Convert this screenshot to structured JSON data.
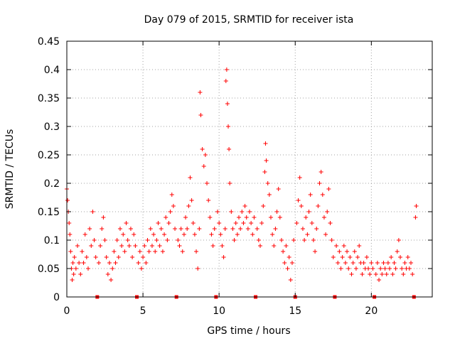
{
  "chart_data": {
    "type": "scatter",
    "title": "Day 079 of 2015, SRMTID for receiver ista",
    "xlabel": "GPS time / hours",
    "ylabel": "SRMTID / TECUs",
    "xlim": [
      0,
      24
    ],
    "ylim": [
      0,
      0.45
    ],
    "xticks": [
      0,
      5,
      10,
      15,
      20
    ],
    "yticks": [
      0,
      0.05,
      0.1,
      0.15,
      0.2,
      0.25,
      0.3,
      0.35,
      0.4,
      0.45
    ],
    "ytick_labels": [
      "0",
      "0.05",
      "0.1",
      "0.15",
      "0.2",
      "0.25",
      "0.3",
      "0.35",
      "0.4",
      "0.45"
    ],
    "grid": true,
    "marker": "+",
    "color": "#ff0000",
    "gap_markers_x": [
      2.0,
      4.6,
      7.2,
      9.8,
      12.4,
      15.0,
      17.6,
      20.2,
      22.8
    ],
    "series": [
      {
        "name": "SRMTID",
        "points": [
          [
            0.0,
            0.19
          ],
          [
            0.05,
            0.17
          ],
          [
            0.1,
            0.15
          ],
          [
            0.15,
            0.13
          ],
          [
            0.2,
            0.11
          ],
          [
            0.25,
            0.08
          ],
          [
            0.3,
            0.05
          ],
          [
            0.35,
            0.03
          ],
          [
            0.4,
            0.06
          ],
          [
            0.45,
            0.04
          ],
          [
            0.5,
            0.07
          ],
          [
            0.6,
            0.05
          ],
          [
            0.7,
            0.09
          ],
          [
            0.8,
            0.06
          ],
          [
            0.9,
            0.04
          ],
          [
            1.0,
            0.08
          ],
          [
            1.1,
            0.06
          ],
          [
            1.2,
            0.11
          ],
          [
            1.3,
            0.07
          ],
          [
            1.4,
            0.05
          ],
          [
            1.5,
            0.12
          ],
          [
            1.6,
            0.09
          ],
          [
            1.7,
            0.15
          ],
          [
            1.8,
            0.1
          ],
          [
            1.9,
            0.07
          ],
          [
            2.1,
            0.06
          ],
          [
            2.2,
            0.09
          ],
          [
            2.3,
            0.12
          ],
          [
            2.4,
            0.14
          ],
          [
            2.5,
            0.1
          ],
          [
            2.6,
            0.07
          ],
          [
            2.7,
            0.04
          ],
          [
            2.8,
            0.06
          ],
          [
            2.9,
            0.03
          ],
          [
            3.0,
            0.05
          ],
          [
            3.1,
            0.08
          ],
          [
            3.2,
            0.06
          ],
          [
            3.3,
            0.1
          ],
          [
            3.4,
            0.07
          ],
          [
            3.5,
            0.12
          ],
          [
            3.6,
            0.09
          ],
          [
            3.7,
            0.11
          ],
          [
            3.8,
            0.08
          ],
          [
            3.9,
            0.13
          ],
          [
            4.0,
            0.1
          ],
          [
            4.1,
            0.09
          ],
          [
            4.2,
            0.12
          ],
          [
            4.3,
            0.07
          ],
          [
            4.4,
            0.11
          ],
          [
            4.5,
            0.09
          ],
          [
            4.7,
            0.06
          ],
          [
            4.8,
            0.08
          ],
          [
            4.9,
            0.05
          ],
          [
            5.0,
            0.07
          ],
          [
            5.1,
            0.09
          ],
          [
            5.2,
            0.06
          ],
          [
            5.3,
            0.1
          ],
          [
            5.4,
            0.08
          ],
          [
            5.5,
            0.12
          ],
          [
            5.6,
            0.09
          ],
          [
            5.7,
            0.11
          ],
          [
            5.8,
            0.08
          ],
          [
            5.9,
            0.1
          ],
          [
            6.0,
            0.13
          ],
          [
            6.1,
            0.09
          ],
          [
            6.2,
            0.12
          ],
          [
            6.3,
            0.08
          ],
          [
            6.4,
            0.11
          ],
          [
            6.5,
            0.14
          ],
          [
            6.6,
            0.1
          ],
          [
            6.7,
            0.13
          ],
          [
            6.8,
            0.15
          ],
          [
            6.9,
            0.18
          ],
          [
            7.0,
            0.16
          ],
          [
            7.1,
            0.12
          ],
          [
            7.3,
            0.1
          ],
          [
            7.4,
            0.09
          ],
          [
            7.5,
            0.12
          ],
          [
            7.6,
            0.08
          ],
          [
            7.7,
            0.11
          ],
          [
            7.8,
            0.14
          ],
          [
            7.9,
            0.12
          ],
          [
            8.0,
            0.16
          ],
          [
            8.1,
            0.21
          ],
          [
            8.2,
            0.17
          ],
          [
            8.3,
            0.13
          ],
          [
            8.4,
            0.11
          ],
          [
            8.5,
            0.08
          ],
          [
            8.6,
            0.05
          ],
          [
            8.7,
            0.12
          ],
          [
            8.75,
            0.36
          ],
          [
            8.8,
            0.32
          ],
          [
            8.9,
            0.26
          ],
          [
            9.0,
            0.23
          ],
          [
            9.1,
            0.25
          ],
          [
            9.2,
            0.2
          ],
          [
            9.3,
            0.17
          ],
          [
            9.4,
            0.14
          ],
          [
            9.5,
            0.11
          ],
          [
            9.6,
            0.09
          ],
          [
            9.7,
            0.12
          ],
          [
            9.9,
            0.15
          ],
          [
            10.0,
            0.13
          ],
          [
            10.1,
            0.11
          ],
          [
            10.2,
            0.09
          ],
          [
            10.3,
            0.07
          ],
          [
            10.4,
            0.12
          ],
          [
            10.45,
            0.38
          ],
          [
            10.5,
            0.4
          ],
          [
            10.55,
            0.34
          ],
          [
            10.6,
            0.3
          ],
          [
            10.65,
            0.26
          ],
          [
            10.7,
            0.2
          ],
          [
            10.8,
            0.15
          ],
          [
            10.9,
            0.12
          ],
          [
            11.0,
            0.1
          ],
          [
            11.1,
            0.13
          ],
          [
            11.2,
            0.11
          ],
          [
            11.3,
            0.14
          ],
          [
            11.4,
            0.12
          ],
          [
            11.5,
            0.15
          ],
          [
            11.6,
            0.13
          ],
          [
            11.7,
            0.16
          ],
          [
            11.8,
            0.14
          ],
          [
            11.9,
            0.12
          ],
          [
            12.0,
            0.15
          ],
          [
            12.1,
            0.13
          ],
          [
            12.2,
            0.11
          ],
          [
            12.3,
            0.14
          ],
          [
            12.5,
            0.12
          ],
          [
            12.6,
            0.1
          ],
          [
            12.7,
            0.09
          ],
          [
            12.8,
            0.13
          ],
          [
            12.9,
            0.16
          ],
          [
            13.0,
            0.22
          ],
          [
            13.05,
            0.27
          ],
          [
            13.1,
            0.24
          ],
          [
            13.2,
            0.2
          ],
          [
            13.3,
            0.18
          ],
          [
            13.4,
            0.14
          ],
          [
            13.5,
            0.11
          ],
          [
            13.6,
            0.09
          ],
          [
            13.7,
            0.12
          ],
          [
            13.8,
            0.15
          ],
          [
            13.9,
            0.19
          ],
          [
            14.0,
            0.14
          ],
          [
            14.1,
            0.1
          ],
          [
            14.2,
            0.08
          ],
          [
            14.3,
            0.06
          ],
          [
            14.4,
            0.09
          ],
          [
            14.5,
            0.05
          ],
          [
            14.6,
            0.07
          ],
          [
            14.7,
            0.03
          ],
          [
            14.8,
            0.06
          ],
          [
            14.9,
            0.1
          ],
          [
            15.1,
            0.13
          ],
          [
            15.2,
            0.17
          ],
          [
            15.3,
            0.21
          ],
          [
            15.4,
            0.16
          ],
          [
            15.5,
            0.12
          ],
          [
            15.6,
            0.1
          ],
          [
            15.7,
            0.14
          ],
          [
            15.8,
            0.11
          ],
          [
            15.9,
            0.15
          ],
          [
            16.0,
            0.18
          ],
          [
            16.1,
            0.13
          ],
          [
            16.2,
            0.1
          ],
          [
            16.3,
            0.08
          ],
          [
            16.4,
            0.12
          ],
          [
            16.5,
            0.16
          ],
          [
            16.6,
            0.2
          ],
          [
            16.7,
            0.22
          ],
          [
            16.8,
            0.18
          ],
          [
            16.9,
            0.14
          ],
          [
            17.0,
            0.11
          ],
          [
            17.1,
            0.15
          ],
          [
            17.2,
            0.19
          ],
          [
            17.3,
            0.13
          ],
          [
            17.4,
            0.1
          ],
          [
            17.5,
            0.07
          ],
          [
            17.7,
            0.09
          ],
          [
            17.8,
            0.06
          ],
          [
            17.9,
            0.08
          ],
          [
            18.0,
            0.05
          ],
          [
            18.1,
            0.07
          ],
          [
            18.2,
            0.09
          ],
          [
            18.3,
            0.06
          ],
          [
            18.4,
            0.08
          ],
          [
            18.5,
            0.05
          ],
          [
            18.6,
            0.07
          ],
          [
            18.7,
            0.04
          ],
          [
            18.8,
            0.06
          ],
          [
            18.9,
            0.08
          ],
          [
            19.0,
            0.05
          ],
          [
            19.1,
            0.07
          ],
          [
            19.2,
            0.09
          ],
          [
            19.3,
            0.06
          ],
          [
            19.4,
            0.04
          ],
          [
            19.5,
            0.06
          ],
          [
            19.6,
            0.05
          ],
          [
            19.7,
            0.07
          ],
          [
            19.8,
            0.05
          ],
          [
            19.9,
            0.04
          ],
          [
            20.0,
            0.06
          ],
          [
            20.1,
            0.05
          ],
          [
            20.3,
            0.04
          ],
          [
            20.4,
            0.06
          ],
          [
            20.5,
            0.03
          ],
          [
            20.6,
            0.05
          ],
          [
            20.7,
            0.04
          ],
          [
            20.8,
            0.06
          ],
          [
            20.9,
            0.05
          ],
          [
            21.0,
            0.04
          ],
          [
            21.1,
            0.06
          ],
          [
            21.2,
            0.05
          ],
          [
            21.3,
            0.07
          ],
          [
            21.4,
            0.04
          ],
          [
            21.5,
            0.06
          ],
          [
            21.6,
            0.05
          ],
          [
            21.7,
            0.08
          ],
          [
            21.8,
            0.1
          ],
          [
            21.9,
            0.07
          ],
          [
            22.0,
            0.05
          ],
          [
            22.1,
            0.04
          ],
          [
            22.2,
            0.06
          ],
          [
            22.3,
            0.05
          ],
          [
            22.4,
            0.07
          ],
          [
            22.5,
            0.05
          ],
          [
            22.6,
            0.06
          ],
          [
            22.7,
            0.04
          ],
          [
            22.9,
            0.14
          ],
          [
            22.95,
            0.16
          ]
        ]
      }
    ]
  }
}
